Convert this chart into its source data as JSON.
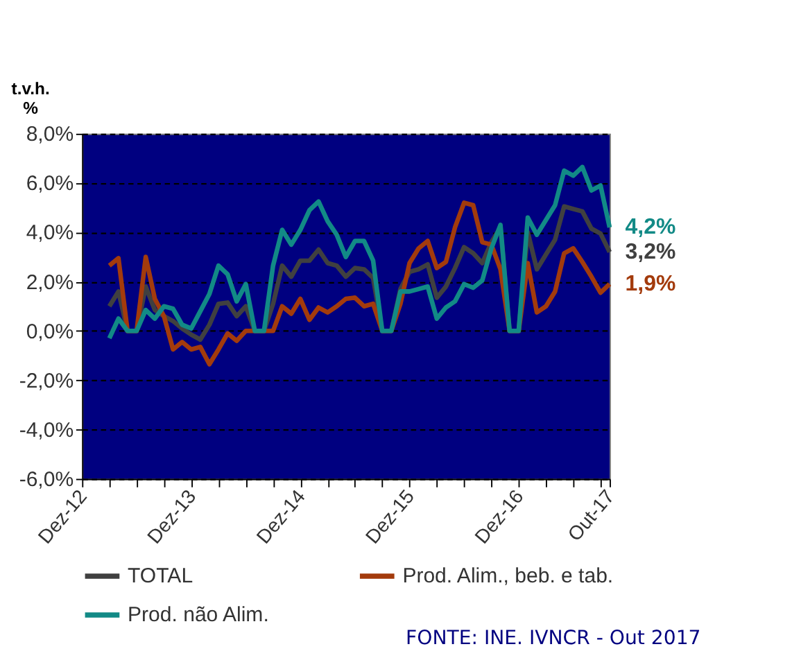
{
  "chart_data": {
    "type": "line",
    "ylabel": "t.v.h.\n%",
    "categories": [
      "Dez-12",
      null,
      null,
      null,
      null,
      null,
      null,
      null,
      null,
      null,
      null,
      null,
      "Dez-13",
      null,
      null,
      null,
      null,
      null,
      null,
      null,
      null,
      null,
      null,
      null,
      "Dez-14",
      null,
      null,
      null,
      null,
      null,
      null,
      null,
      null,
      null,
      null,
      null,
      "Dez-15",
      null,
      null,
      null,
      null,
      null,
      null,
      null,
      null,
      null,
      null,
      null,
      "Dez-16",
      null,
      null,
      null,
      null,
      null,
      null,
      null,
      null,
      null,
      "Out-17"
    ],
    "series": [
      {
        "name": "TOTAL",
        "color": "#404040",
        "values": [
          null,
          null,
          null,
          1.0,
          1.6,
          0,
          0,
          1.8,
          0.85,
          0.6,
          0.4,
          0.1,
          -0.15,
          -0.35,
          0.25,
          1.1,
          1.15,
          0.6,
          1.0,
          0,
          0,
          1.1,
          2.65,
          2.2,
          2.85,
          2.85,
          3.3,
          2.75,
          2.65,
          2.2,
          2.55,
          2.5,
          2.15,
          0,
          0,
          1.7,
          2.4,
          2.5,
          2.7,
          1.35,
          1.8,
          2.55,
          3.4,
          3.15,
          2.75,
          3.6,
          4.2,
          0,
          0,
          4.0,
          2.5,
          3.1,
          3.7,
          5.05,
          4.95,
          4.85,
          4.15,
          3.95,
          3.2
        ],
        "value_labels": [
          null,
          null,
          null,
          null,
          null,
          null,
          null,
          null,
          null,
          null,
          null,
          null,
          null,
          null,
          null,
          null,
          null,
          null,
          null,
          null,
          null,
          null,
          null,
          null,
          null,
          null,
          null,
          null,
          null,
          null,
          null,
          null,
          null,
          null,
          null,
          null,
          null,
          null,
          null,
          null,
          null,
          null,
          null,
          null,
          null,
          null,
          null,
          null,
          null,
          null,
          null,
          null,
          null,
          null,
          null,
          null,
          null,
          null,
          "3,2%"
        ]
      },
      {
        "name": "Prod. Alim., beb. e tab.",
        "color": "#a33b0c",
        "values": [
          null,
          null,
          null,
          2.65,
          2.95,
          0,
          0,
          3.0,
          1.3,
          0.6,
          -0.75,
          -0.45,
          -0.75,
          -0.65,
          -1.35,
          -0.75,
          -0.1,
          -0.4,
          0,
          0,
          0,
          0,
          1.0,
          0.7,
          1.3,
          0.45,
          0.95,
          0.75,
          1.0,
          1.3,
          1.35,
          1.0,
          1.1,
          0,
          0,
          1.1,
          2.75,
          3.35,
          3.65,
          2.55,
          2.8,
          4.2,
          5.2,
          5.1,
          3.6,
          3.5,
          2.5,
          0,
          0,
          2.75,
          0.75,
          1.0,
          1.6,
          3.15,
          3.35,
          2.8,
          2.2,
          1.55,
          1.9
        ],
        "value_labels": [
          null,
          null,
          null,
          null,
          null,
          null,
          null,
          null,
          null,
          null,
          null,
          null,
          null,
          null,
          null,
          null,
          null,
          null,
          null,
          null,
          null,
          null,
          null,
          null,
          null,
          null,
          null,
          null,
          null,
          null,
          null,
          null,
          null,
          null,
          null,
          null,
          null,
          null,
          null,
          null,
          null,
          null,
          null,
          null,
          null,
          null,
          null,
          null,
          null,
          null,
          null,
          null,
          null,
          null,
          null,
          null,
          null,
          null,
          "1,9%"
        ]
      },
      {
        "name": "Prod. não Alim.",
        "color": "#128a86",
        "values": [
          null,
          null,
          null,
          -0.3,
          0.5,
          0,
          0,
          0.85,
          0.5,
          1.0,
          0.9,
          0.25,
          0.1,
          0.8,
          1.5,
          2.65,
          2.3,
          1.2,
          1.9,
          0,
          0,
          2.65,
          4.1,
          3.5,
          4.1,
          4.9,
          5.25,
          4.45,
          3.9,
          3.0,
          3.65,
          3.65,
          2.85,
          0,
          0,
          1.6,
          1.6,
          1.7,
          1.8,
          0.5,
          0.95,
          1.2,
          1.9,
          1.75,
          2.05,
          3.35,
          4.3,
          0,
          0,
          4.6,
          3.9,
          4.5,
          5.1,
          6.5,
          6.3,
          6.65,
          5.7,
          5.9,
          4.2
        ],
        "value_labels": [
          null,
          null,
          null,
          null,
          null,
          null,
          null,
          null,
          null,
          null,
          null,
          null,
          null,
          null,
          null,
          null,
          null,
          null,
          null,
          null,
          null,
          null,
          null,
          null,
          null,
          null,
          null,
          null,
          null,
          null,
          null,
          null,
          null,
          null,
          null,
          null,
          null,
          null,
          null,
          null,
          null,
          null,
          null,
          null,
          null,
          null,
          null,
          null,
          null,
          null,
          null,
          null,
          null,
          null,
          null,
          null,
          null,
          null,
          "4,2%"
        ]
      }
    ],
    "ylim": [
      -6,
      8
    ],
    "yticks": [
      {
        "value": -6,
        "label": "-6,0%"
      },
      {
        "value": -4,
        "label": "-4,0%"
      },
      {
        "value": -2,
        "label": "-2,0%"
      },
      {
        "value": 0,
        "label": "0,0%"
      },
      {
        "value": 2,
        "label": "2,0%"
      },
      {
        "value": 4,
        "label": "4,0%"
      },
      {
        "value": 6,
        "label": "6,0%"
      },
      {
        "value": 8,
        "label": "8,0%"
      }
    ],
    "grid": "y",
    "line_style": "solid",
    "legend": "bottom",
    "annotations": [
      "FONTE: INE. IVNCR - Out 2017"
    ]
  }
}
